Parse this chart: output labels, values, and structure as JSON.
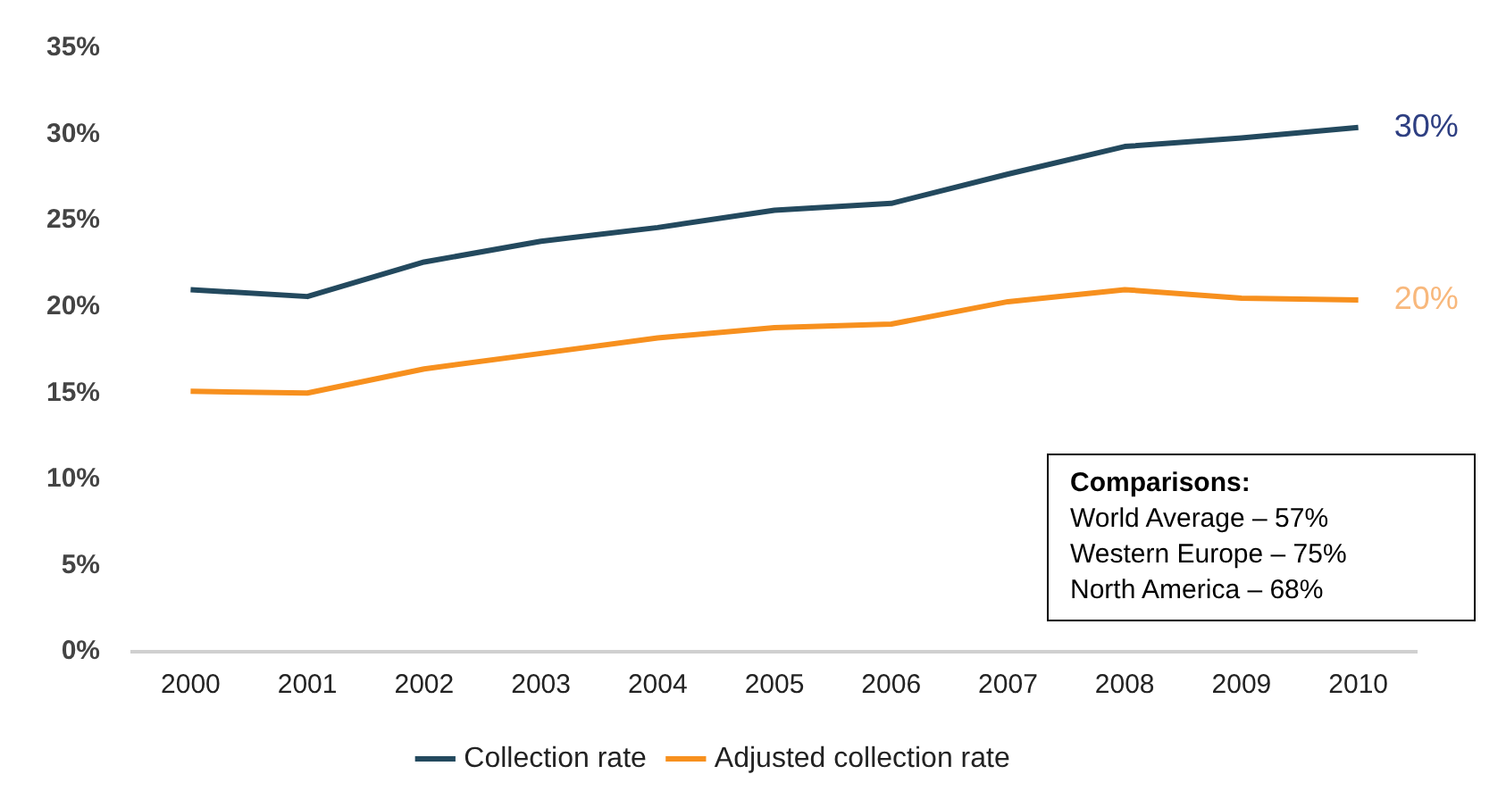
{
  "chart_data": {
    "type": "line",
    "categories": [
      "2000",
      "2001",
      "2002",
      "2003",
      "2004",
      "2005",
      "2006",
      "2007",
      "2008",
      "2009",
      "2010"
    ],
    "series": [
      {
        "name": "Collection rate",
        "color": "#23495e",
        "values": [
          21.0,
          20.6,
          22.6,
          23.8,
          24.6,
          25.6,
          26.0,
          27.7,
          29.3,
          29.8,
          30.4
        ]
      },
      {
        "name": "Adjusted collection rate",
        "color": "#f7901e",
        "values": [
          15.1,
          15.0,
          16.4,
          17.3,
          18.2,
          18.8,
          19.0,
          20.3,
          21.0,
          20.5,
          20.4
        ]
      }
    ],
    "ylim": [
      0,
      35
    ],
    "yticks": [
      {
        "value": 0,
        "label": "0%"
      },
      {
        "value": 5,
        "label": "5%"
      },
      {
        "value": 10,
        "label": "10%"
      },
      {
        "value": 15,
        "label": "15%"
      },
      {
        "value": 20,
        "label": "20%"
      },
      {
        "value": 25,
        "label": "25%"
      },
      {
        "value": 30,
        "label": "30%"
      },
      {
        "value": 35,
        "label": "35%"
      }
    ],
    "grid": false,
    "legend": "bottom",
    "marker": "none",
    "line_style": "solid",
    "annotations": [
      {
        "text": "30%",
        "x": "2010",
        "y": 30.4
      },
      {
        "text": "20%",
        "x": "2010",
        "y": 20.4
      },
      "Comparisons:",
      "World Average – 57%",
      "Western Europe – 75%",
      "North America – 68%"
    ]
  }
}
